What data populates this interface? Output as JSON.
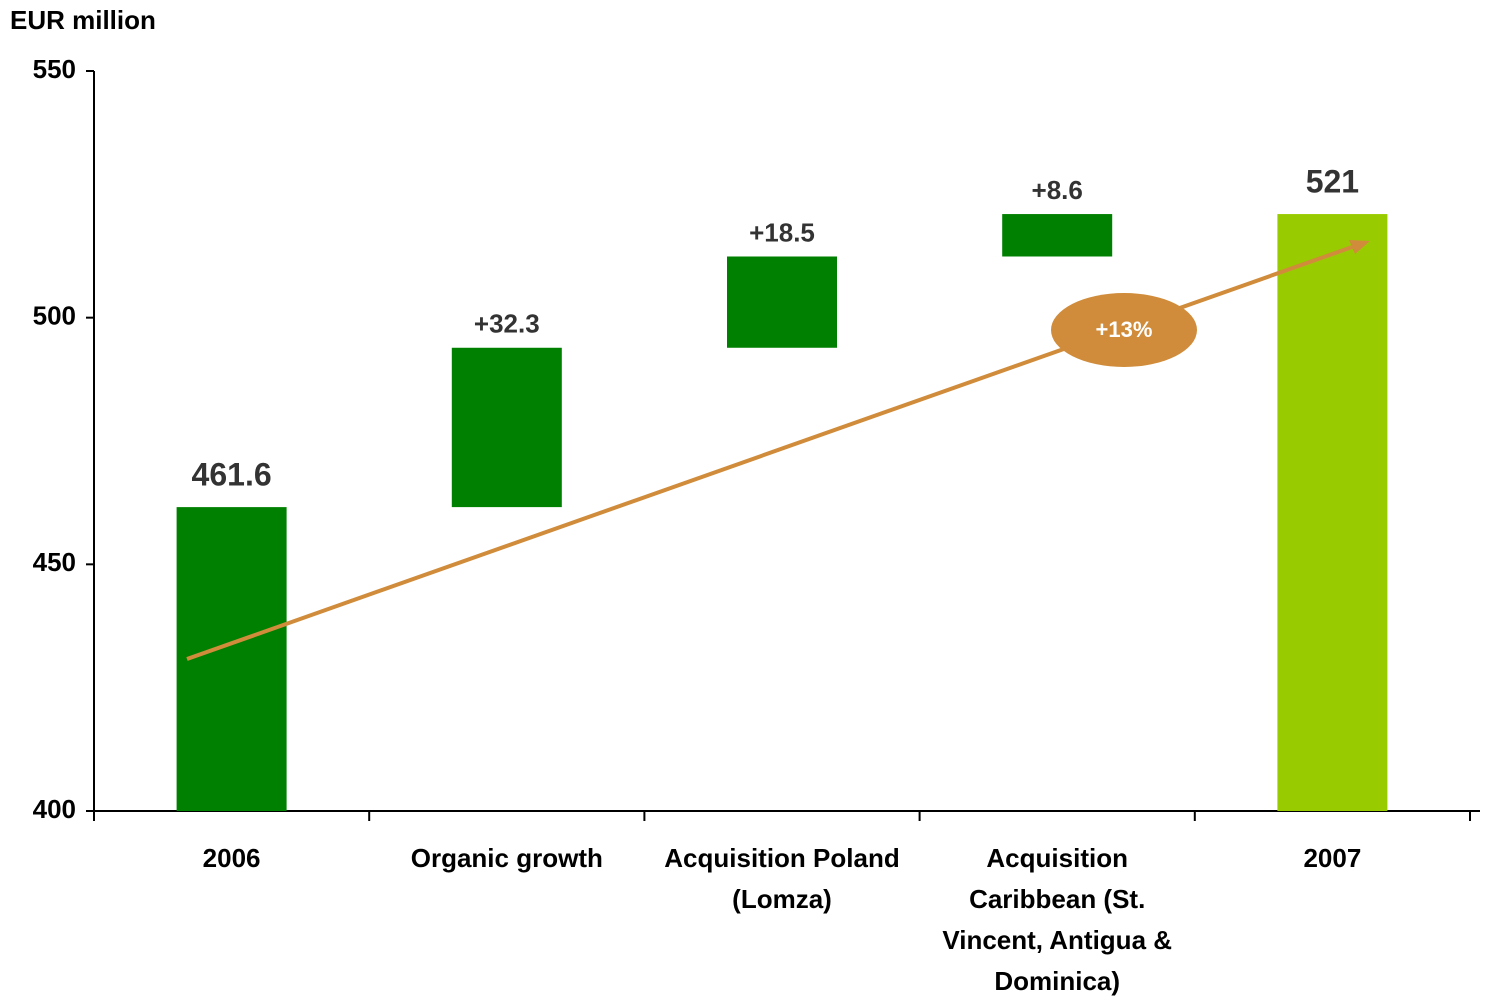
{
  "chart_data": {
    "type": "waterfall",
    "y_axis_label": "EUR million",
    "categories": [
      "2006",
      "Organic growth",
      "Acquisition Poland (Lomza)",
      "Acquisition Caribbean (St. Vincent, Antigua & Dominica)",
      "2007"
    ],
    "values": [
      461.6,
      32.3,
      18.5,
      8.6,
      521
    ],
    "value_labels": [
      "461.6",
      "+32.3",
      "+18.5",
      "+8.6",
      "521"
    ],
    "measures": [
      "absolute",
      "relative",
      "relative",
      "relative",
      "total"
    ],
    "colors": [
      "#008000",
      "#008000",
      "#008000",
      "#008000",
      "#99cc00"
    ],
    "ylim": [
      400,
      550
    ],
    "yticks": [
      400,
      450,
      500,
      550
    ],
    "annotation": "+13%"
  }
}
